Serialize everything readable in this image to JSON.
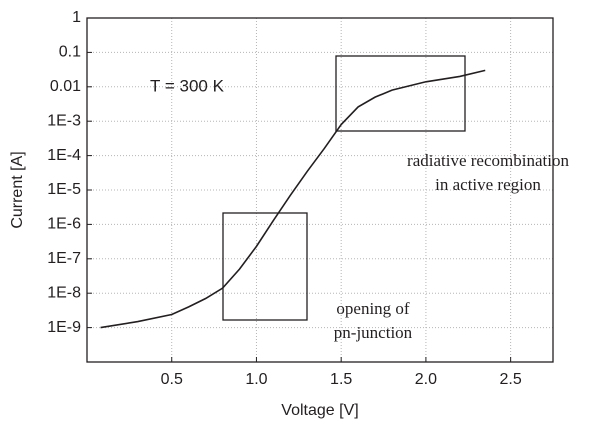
{
  "chart_data": {
    "type": "line",
    "x_label": "Voltage [V]",
    "y_label": "Current [A]",
    "annotations": [
      "T = 300 K",
      "radiative recombination",
      "in active region",
      "opening of",
      "pn-junction"
    ],
    "x": [
      0.08,
      0.3,
      0.5,
      0.6,
      0.7,
      0.8,
      0.9,
      1.0,
      1.1,
      1.2,
      1.3,
      1.4,
      1.5,
      1.6,
      1.7,
      1.8,
      2.0,
      2.2,
      2.35
    ],
    "series": [
      {
        "color": "#231f20",
        "values": [
          1e-09,
          1.5e-09,
          2.4e-09,
          4e-09,
          7e-09,
          1.4e-08,
          5e-08,
          2.3e-07,
          1.3e-06,
          7e-06,
          3.5e-05,
          0.00016,
          0.0008,
          0.0026,
          0.005,
          0.008,
          0.014,
          0.02,
          0.03
        ]
      }
    ],
    "xlim": [
      0,
      2.75
    ],
    "xticks": [
      0.5,
      {
        "value": 1.0,
        "label": "1.0"
      },
      1.5,
      {
        "value": 2.0,
        "label": "2.0"
      },
      2.5
    ],
    "ylim": [
      1e-10,
      1
    ],
    "log_y": true,
    "yticks": [
      {
        "value": 1e-09,
        "label": "1E-9"
      },
      {
        "value": 1e-08,
        "label": "1E-8"
      },
      {
        "value": 1e-07,
        "label": "1E-7"
      },
      {
        "value": 1e-06,
        "label": "1E-6"
      },
      {
        "value": 1e-05,
        "label": "1E-5"
      },
      {
        "value": 0.0001,
        "label": "1E-4"
      },
      {
        "value": 0.001,
        "label": "1E-3"
      },
      0.01,
      0.1,
      1
    ],
    "grid": true
  }
}
